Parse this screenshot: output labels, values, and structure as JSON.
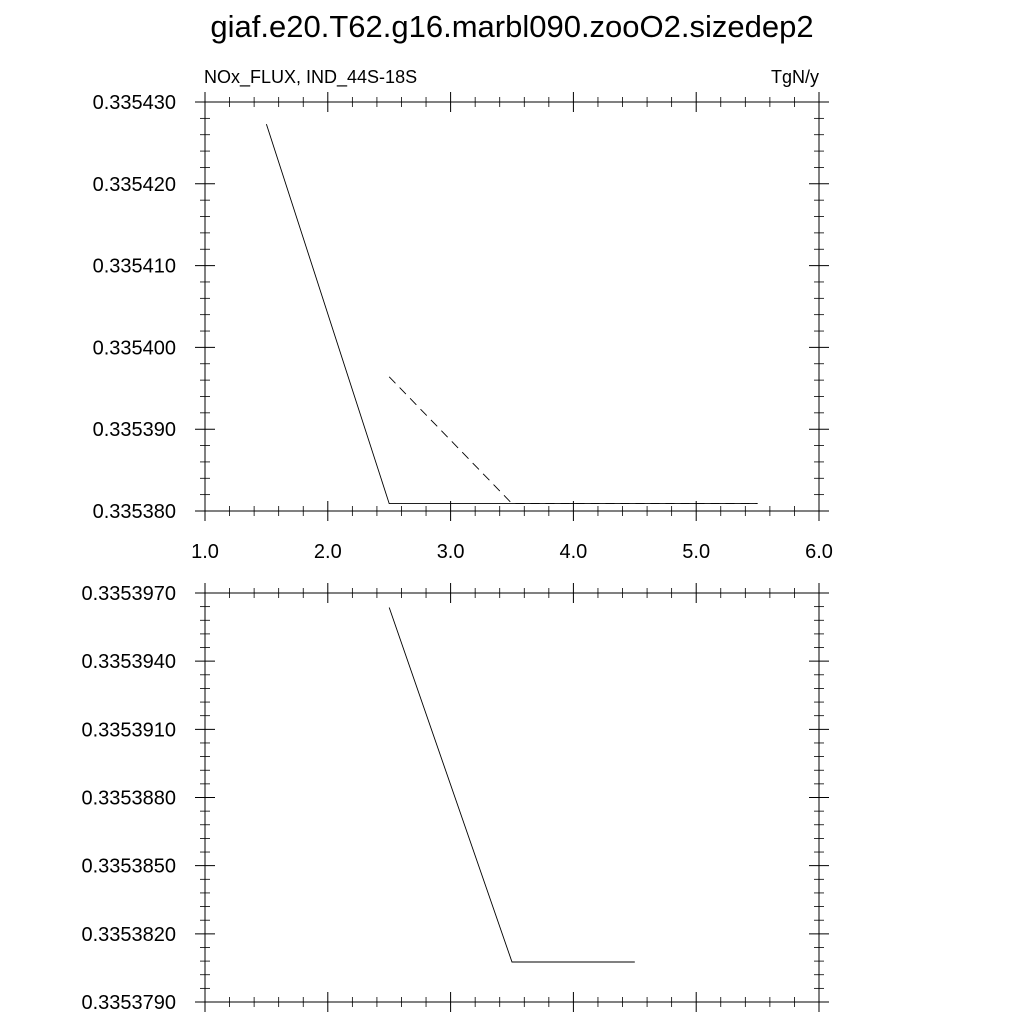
{
  "title": "giaf.e20.T62.g16.marbl090.zooO2.sizedep2",
  "colors": {
    "line": "#000000",
    "background": "#ffffff"
  },
  "chart_data": [
    {
      "type": "line",
      "subtitle_left": "NOx_FLUX, IND_44S-18S",
      "subtitle_right": "TgN/y",
      "xlim": [
        1.0,
        6.0
      ],
      "ylim": [
        0.33538,
        0.33543
      ],
      "x_ticks": [
        1.0,
        2.0,
        3.0,
        4.0,
        5.0,
        6.0
      ],
      "x_tick_labels": [
        "1.0",
        "2.0",
        "3.0",
        "4.0",
        "5.0",
        "6.0"
      ],
      "y_ticks": [
        0.33538,
        0.33539,
        0.3354,
        0.33541,
        0.33542,
        0.33543
      ],
      "y_tick_labels": [
        "0.335380",
        "0.335390",
        "0.335400",
        "0.335410",
        "0.335420",
        "0.335430"
      ],
      "grid": false,
      "series": [
        {
          "style": "solid",
          "x": [
            1.5,
            2.5,
            3.5,
            4.5,
            5.5
          ],
          "y": [
            0.3354273,
            0.3353809,
            0.3353809,
            0.3353809,
            0.3353809
          ]
        },
        {
          "style": "dashed",
          "x": [
            2.5,
            3.5,
            4.5,
            5.5
          ],
          "y": [
            0.3353964,
            0.3353809,
            0.3353809,
            0.3353809
          ]
        }
      ]
    },
    {
      "type": "line",
      "xlim": [
        1.0,
        6.0
      ],
      "ylim": [
        0.335379,
        0.335397
      ],
      "x_ticks": [
        1.0,
        2.0,
        3.0,
        4.0,
        5.0,
        6.0
      ],
      "x_tick_labels": [],
      "y_ticks": [
        0.335379,
        0.335382,
        0.335385,
        0.335388,
        0.335391,
        0.335394,
        0.335397
      ],
      "y_tick_labels": [
        "0.3353790",
        "0.3353820",
        "0.3353850",
        "0.3353880",
        "0.3353910",
        "0.3353940",
        "0.3353970"
      ],
      "grid": false,
      "series": [
        {
          "style": "solid",
          "x": [
            2.5,
            3.5,
            4.5
          ],
          "y": [
            0.33539636,
            0.33538076,
            0.33538076
          ]
        }
      ]
    }
  ]
}
